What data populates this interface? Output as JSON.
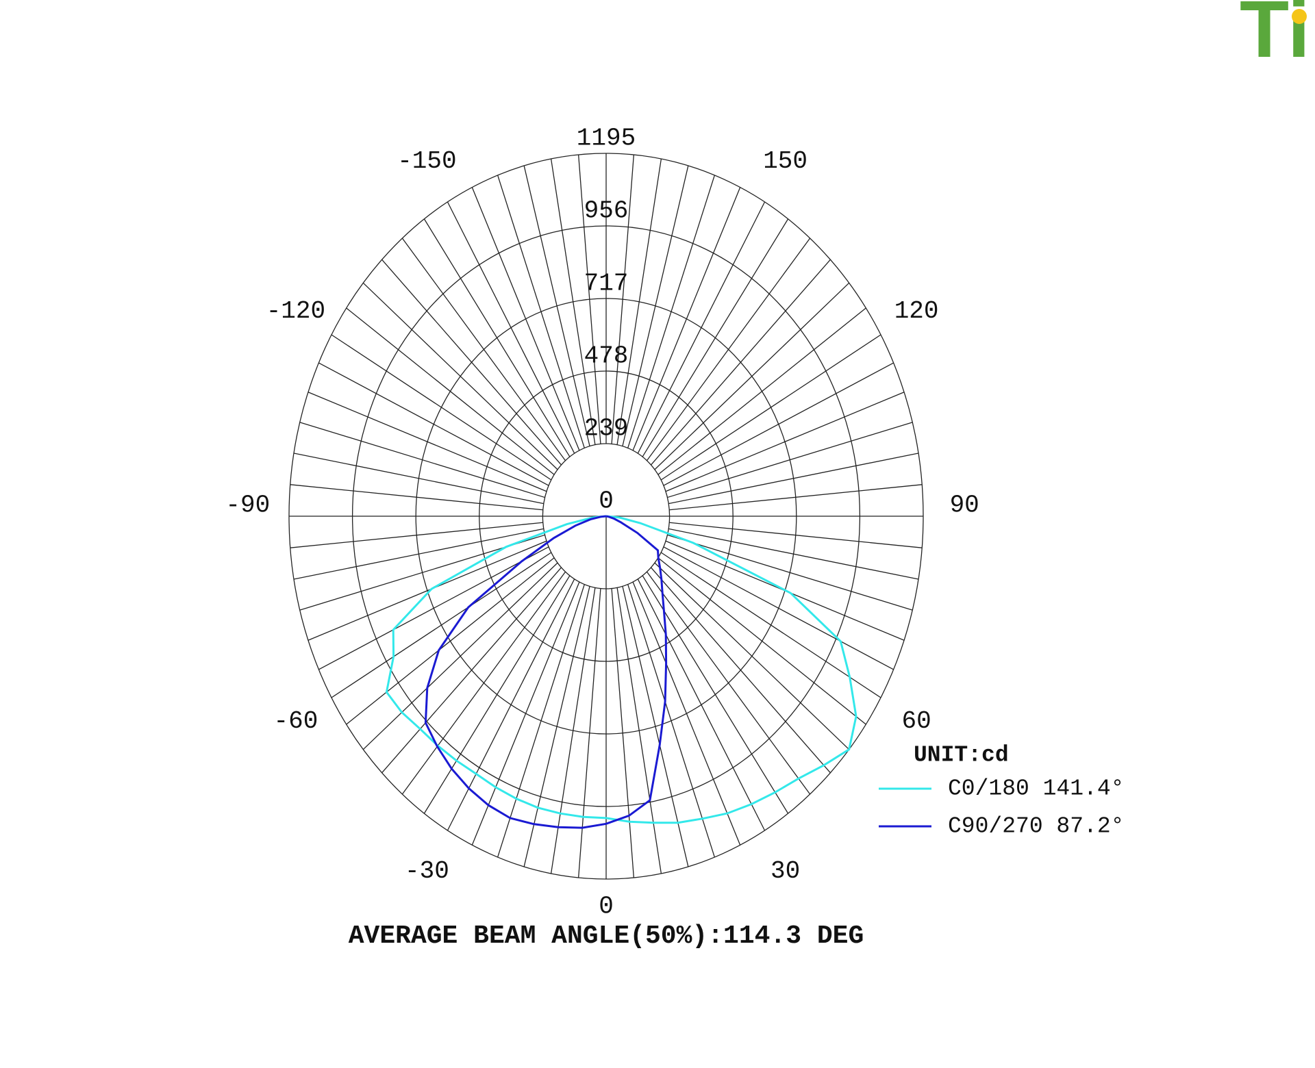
{
  "logo": "Ti",
  "chart_data": {
    "type": "polar",
    "title": "AVERAGE BEAM ANGLE(50%):114.3 DEG",
    "unit_label": "UNIT:cd",
    "rlim": [
      0,
      1195
    ],
    "rticks": [
      0,
      239,
      478,
      717,
      956,
      1195
    ],
    "xticks": [
      -150,
      -120,
      -90,
      -60,
      -30,
      0,
      30,
      60,
      90,
      120,
      150
    ],
    "x": [
      -90,
      -85,
      -80,
      -75,
      -70,
      -65,
      -60,
      -55,
      -50,
      -45,
      -40,
      -35,
      -30,
      -25,
      -20,
      -15,
      -10,
      -5,
      0,
      5,
      10,
      15,
      20,
      25,
      30,
      35,
      40,
      45,
      50,
      55,
      60,
      65,
      70,
      75,
      80,
      85,
      90
    ],
    "series": [
      {
        "name": "C0/180 141.4°",
        "color": "#33e8ea",
        "values": [
          0,
          50,
          150,
          390,
          700,
          885,
          925,
          1010,
          1005,
          991,
          987,
          983,
          980,
          985,
          990,
          994,
          994,
          994,
          994,
          1010,
          1025,
          1045,
          1060,
          1080,
          1095,
          1110,
          1128,
          1160,
          1195,
          1150,
          1060,
          975,
          740,
          340,
          130,
          50,
          0
        ]
      },
      {
        "name": "C90/270 87.2°",
        "color": "#1a1ad2",
        "values": [
          0,
          20,
          60,
          120,
          210,
          350,
          600,
          770,
          880,
          962,
          990,
          1015,
          1035,
          1050,
          1058,
          1050,
          1040,
          1030,
          1013,
          990,
          950,
          780,
          650,
          535,
          450,
          380,
          330,
          295,
          265,
          240,
          225,
          130,
          60,
          30,
          10,
          0,
          0
        ]
      }
    ]
  }
}
